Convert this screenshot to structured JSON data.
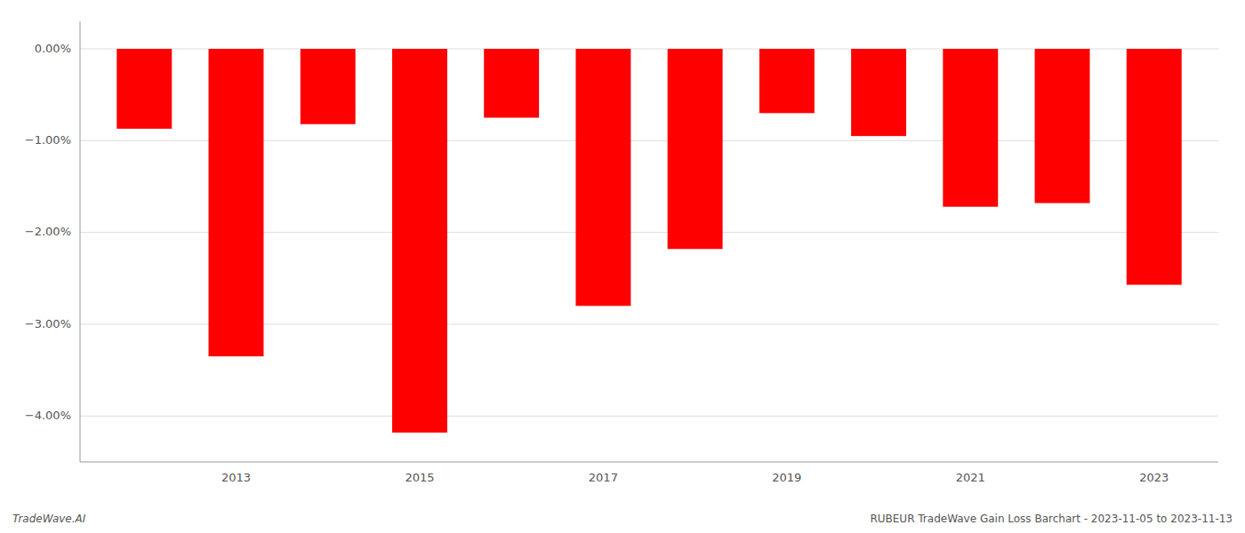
{
  "chart_data": {
    "type": "bar",
    "x": [
      2012,
      2013,
      2014,
      2015,
      2016,
      2017,
      2018,
      2019,
      2020,
      2021,
      2022,
      2023
    ],
    "values": [
      -0.0087,
      -0.0335,
      -0.0082,
      -0.0418,
      -0.0075,
      -0.028,
      -0.0218,
      -0.007,
      -0.0095,
      -0.0172,
      -0.0168,
      -0.0257
    ],
    "color": "#ff0000",
    "xlim": [
      2011.3,
      2023.7
    ],
    "xticks": [
      2013,
      2015,
      2017,
      2019,
      2021,
      2023
    ],
    "ylim": [
      -0.045,
      0.003
    ],
    "yticks": [
      {
        "value": 0.0,
        "label": "0.00%"
      },
      {
        "value": -0.01,
        "label": "−1.00%"
      },
      {
        "value": -0.02,
        "label": "−2.00%"
      },
      {
        "value": -0.03,
        "label": "−3.00%"
      },
      {
        "value": -0.04,
        "label": "−4.00%"
      }
    ],
    "grid": true,
    "annotations": [
      "TradeWave.AI",
      "RUBEUR TradeWave Gain Loss Barchart - 2023-11-05 to 2023-11-13"
    ]
  }
}
